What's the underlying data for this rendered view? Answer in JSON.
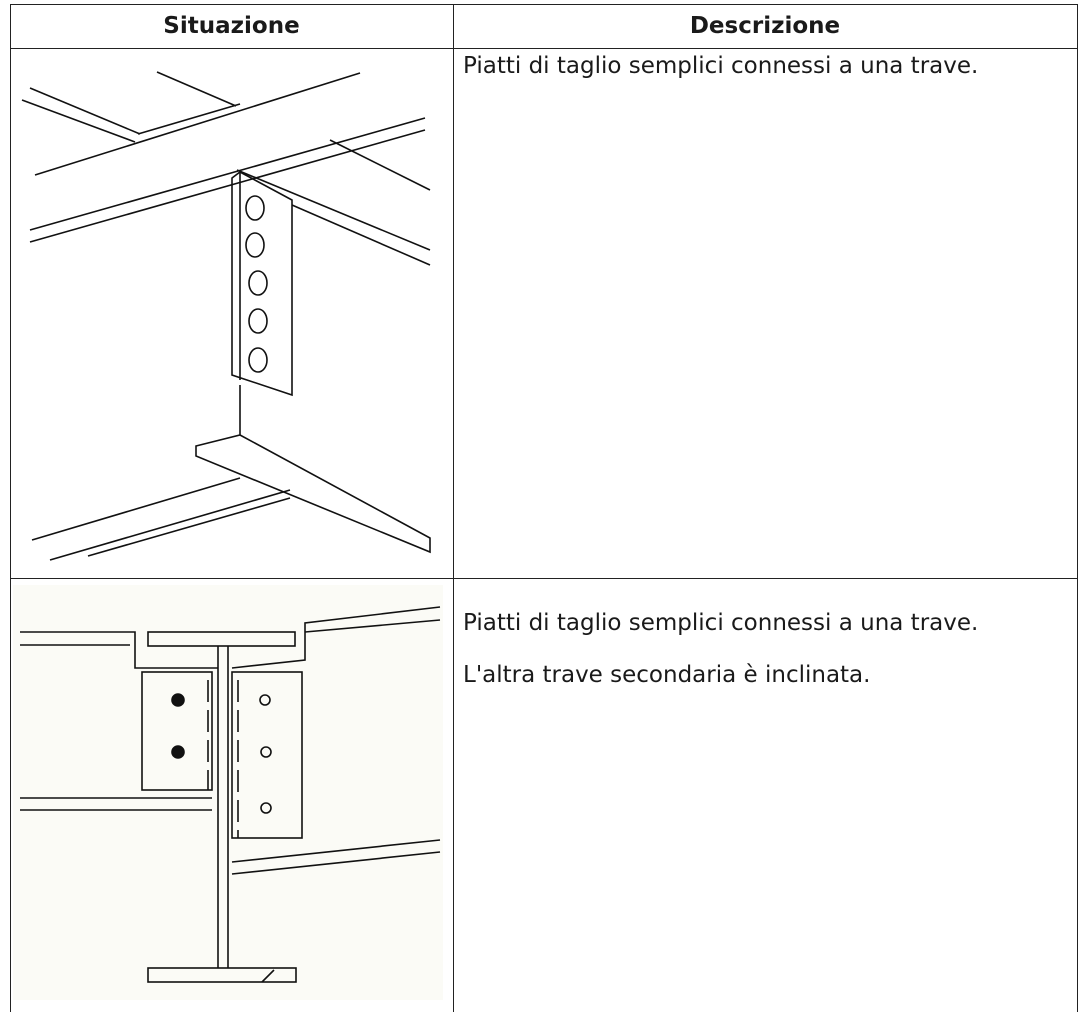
{
  "table": {
    "headers": [
      "Situazione",
      "Descrizione"
    ],
    "rows": [
      {
        "description": [
          "Piatti di taglio semplici connessi a una trave."
        ]
      },
      {
        "description": [
          "Piatti di taglio semplici connessi a una trave.",
          "L'altra trave secondaria è inclinata."
        ]
      }
    ]
  }
}
